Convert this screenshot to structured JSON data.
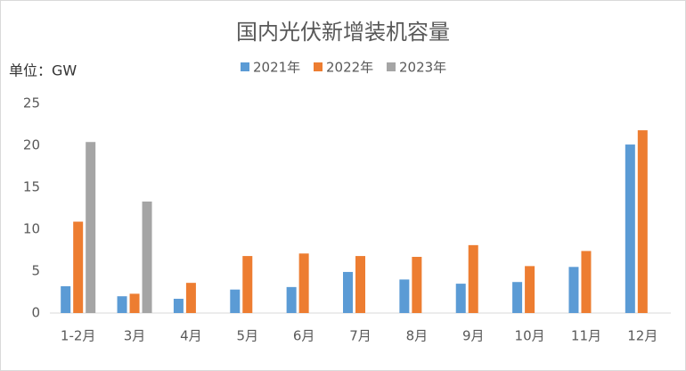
{
  "chart_data": {
    "type": "bar",
    "title": "国内光伏新增装机容量",
    "y_label": "单位：GW",
    "categories": [
      "1-2月",
      "3月",
      "4月",
      "5月",
      "6月",
      "7月",
      "8月",
      "9月",
      "10月",
      "11月",
      "12月"
    ],
    "series": [
      {
        "name": "2021年",
        "color": "#5b9bd5",
        "values": [
          3.2,
          2.0,
          1.7,
          2.8,
          3.1,
          4.9,
          4.0,
          3.5,
          3.7,
          5.5,
          20.1
        ]
      },
      {
        "name": "2022年",
        "color": "#ed7d31",
        "values": [
          10.9,
          2.3,
          3.6,
          6.8,
          7.1,
          6.8,
          6.7,
          8.1,
          5.6,
          7.4,
          21.8
        ]
      },
      {
        "name": "2023年",
        "color": "#a5a5a5",
        "values": [
          20.4,
          13.3,
          null,
          null,
          null,
          null,
          null,
          null,
          null,
          null,
          null
        ]
      }
    ],
    "ylim": [
      0,
      25
    ],
    "yticks": [
      0,
      5,
      10,
      15,
      20,
      25
    ],
    "grid": false,
    "legend": "top"
  }
}
